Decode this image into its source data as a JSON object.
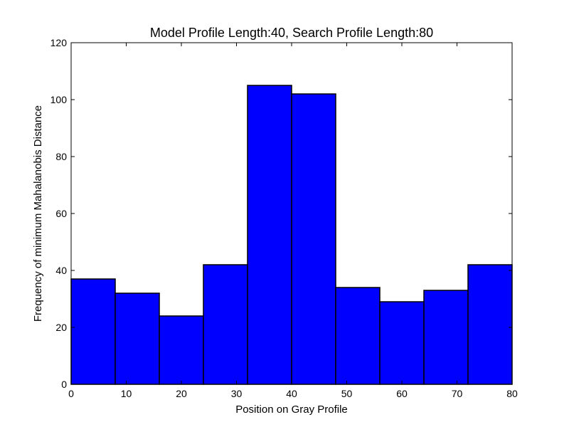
{
  "chart_data": {
    "type": "bar",
    "title": "Model Profile Length:40, Search Profile Length:80",
    "xlabel": "Position on Gray Profile",
    "ylabel": "Frequency of minimum Mahalanobis Distance",
    "xlim": [
      0,
      80
    ],
    "ylim": [
      0,
      120
    ],
    "xticks": [
      "0",
      "10",
      "20",
      "30",
      "40",
      "50",
      "60",
      "70",
      "80"
    ],
    "yticks": [
      "0",
      "20",
      "40",
      "60",
      "80",
      "100",
      "120"
    ],
    "bins": [
      {
        "x0": 0,
        "x1": 8,
        "value": 37
      },
      {
        "x0": 8,
        "x1": 16,
        "value": 32
      },
      {
        "x0": 16,
        "x1": 24,
        "value": 24
      },
      {
        "x0": 24,
        "x1": 32,
        "value": 42
      },
      {
        "x0": 32,
        "x1": 40,
        "value": 105
      },
      {
        "x0": 40,
        "x1": 48,
        "value": 102
      },
      {
        "x0": 48,
        "x1": 56,
        "value": 34
      },
      {
        "x0": 56,
        "x1": 64,
        "value": 29
      },
      {
        "x0": 64,
        "x1": 72,
        "value": 33
      },
      {
        "x0": 72,
        "x1": 80,
        "value": 42
      }
    ],
    "bar_color": "#0000ff",
    "edge_color": "#000000",
    "grid": false
  }
}
